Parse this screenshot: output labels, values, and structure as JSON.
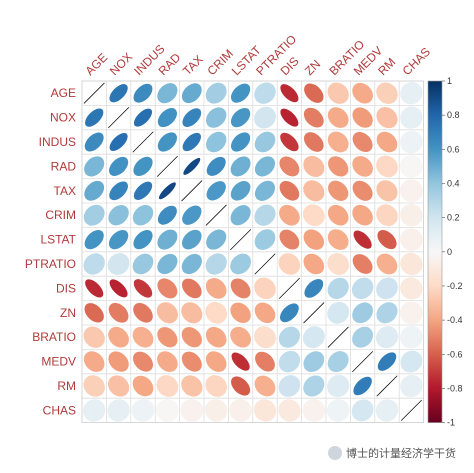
{
  "chart_data": {
    "type": "heatmap",
    "variables": [
      "AGE",
      "NOX",
      "INDUS",
      "RAD",
      "TAX",
      "CRIM",
      "LSTAT",
      "PTRATIO",
      "DIS",
      "ZN",
      "BRATIO",
      "MEDV",
      "RM",
      "CHAS"
    ],
    "matrix": [
      [
        1.0,
        0.73,
        0.64,
        0.46,
        0.51,
        0.35,
        0.6,
        0.26,
        -0.75,
        -0.57,
        -0.27,
        -0.38,
        -0.24,
        0.09
      ],
      [
        0.73,
        1.0,
        0.76,
        0.61,
        0.67,
        0.42,
        0.59,
        0.19,
        -0.77,
        -0.52,
        -0.38,
        -0.43,
        -0.3,
        0.09
      ],
      [
        0.64,
        0.76,
        1.0,
        0.6,
        0.72,
        0.41,
        0.6,
        0.38,
        -0.71,
        -0.53,
        -0.36,
        -0.48,
        -0.39,
        0.06
      ],
      [
        0.46,
        0.61,
        0.6,
        1.0,
        0.91,
        0.63,
        0.49,
        0.46,
        -0.49,
        -0.31,
        -0.44,
        -0.38,
        -0.21,
        -0.01
      ],
      [
        0.51,
        0.67,
        0.72,
        0.91,
        1.0,
        0.58,
        0.54,
        0.46,
        -0.53,
        -0.31,
        -0.44,
        -0.47,
        -0.29,
        -0.04
      ],
      [
        0.35,
        0.42,
        0.41,
        0.63,
        0.58,
        1.0,
        0.46,
        0.29,
        -0.38,
        -0.2,
        -0.39,
        -0.39,
        -0.22,
        -0.06
      ],
      [
        0.6,
        0.59,
        0.6,
        0.49,
        0.54,
        0.46,
        1.0,
        0.37,
        -0.5,
        -0.41,
        -0.37,
        -0.74,
        -0.61,
        -0.05
      ],
      [
        0.26,
        0.19,
        0.38,
        0.46,
        0.46,
        0.29,
        0.37,
        1.0,
        -0.23,
        -0.39,
        -0.18,
        -0.51,
        -0.36,
        -0.12
      ],
      [
        -0.75,
        -0.77,
        -0.71,
        -0.49,
        -0.53,
        -0.38,
        -0.5,
        -0.23,
        1.0,
        0.66,
        0.29,
        0.25,
        0.21,
        -0.1
      ],
      [
        -0.57,
        -0.52,
        -0.53,
        -0.31,
        -0.31,
        -0.2,
        -0.41,
        -0.39,
        0.66,
        1.0,
        0.18,
        0.36,
        0.31,
        -0.04
      ],
      [
        -0.27,
        -0.38,
        -0.36,
        -0.44,
        -0.44,
        -0.39,
        -0.37,
        -0.18,
        0.29,
        0.18,
        1.0,
        0.33,
        0.13,
        0.05
      ],
      [
        -0.38,
        -0.43,
        -0.48,
        -0.38,
        -0.47,
        -0.39,
        -0.74,
        -0.51,
        0.25,
        0.36,
        0.33,
        1.0,
        0.7,
        0.18
      ],
      [
        -0.24,
        -0.3,
        -0.39,
        -0.21,
        -0.29,
        -0.22,
        -0.61,
        -0.36,
        0.21,
        0.31,
        0.13,
        0.7,
        1.0,
        0.09
      ],
      [
        0.09,
        0.09,
        0.06,
        -0.01,
        -0.04,
        -0.06,
        -0.05,
        -0.12,
        -0.1,
        -0.04,
        0.05,
        0.18,
        0.09,
        1.0
      ]
    ],
    "diagonal_style": "line",
    "color_scale": {
      "range": [
        -1,
        1
      ],
      "ticks": [
        "1",
        "0.8",
        "0.6",
        "0.4",
        "0.2",
        "0",
        "-0.2",
        "-0.4",
        "-0.6",
        "-0.8",
        "-1"
      ],
      "negative_color": "#67001f",
      "mid_color": "#f7f7f7",
      "positive_color": "#053061"
    },
    "legend_position": "right",
    "label_color": "#b03a3a"
  },
  "watermark": {
    "text": "博士的计量经济学干货"
  }
}
